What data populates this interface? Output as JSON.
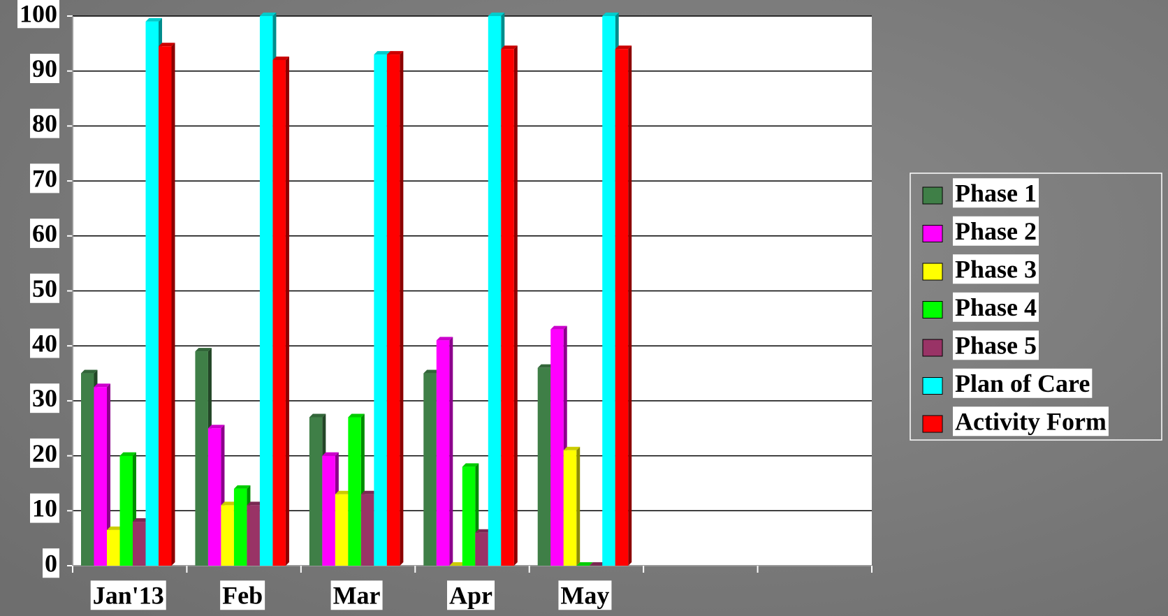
{
  "chart_data": {
    "type": "bar",
    "categories": [
      "Jan'13",
      "Feb",
      "Mar",
      "Apr",
      "May",
      null,
      null
    ],
    "series": [
      {
        "name": "Phase 1",
        "color": "#3f7f47",
        "values": [
          35,
          39,
          27,
          35,
          36,
          null,
          null
        ]
      },
      {
        "name": "Phase 2",
        "color": "#ff00ff",
        "values": [
          32.5,
          25,
          20,
          41,
          43,
          null,
          null
        ]
      },
      {
        "name": "Phase 3",
        "color": "#ffff00",
        "values": [
          6.5,
          11,
          13,
          0,
          21,
          null,
          null
        ]
      },
      {
        "name": "Phase 4",
        "color": "#00ff00",
        "values": [
          20,
          14,
          27,
          18,
          0,
          null,
          null
        ]
      },
      {
        "name": "Phase 5",
        "color": "#993366",
        "values": [
          8,
          11,
          13,
          6,
          0,
          null,
          null
        ]
      },
      {
        "name": "Plan of Care",
        "color": "#00ffff",
        "values": [
          99,
          100,
          93,
          100,
          100,
          null,
          null
        ]
      },
      {
        "name": "Activity Form",
        "color": "#ff0000",
        "values": [
          94.5,
          92,
          93,
          94,
          94,
          null,
          null
        ]
      }
    ],
    "ylim": [
      0,
      100
    ],
    "yticks": [
      0,
      10,
      20,
      30,
      40,
      50,
      60,
      70,
      80,
      90,
      100
    ],
    "grid": true,
    "legend": "right"
  }
}
